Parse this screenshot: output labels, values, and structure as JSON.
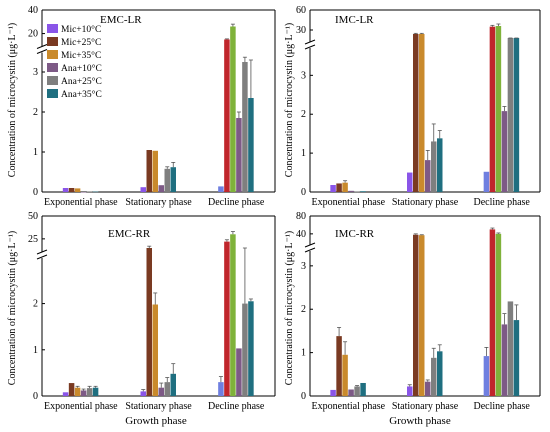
{
  "colors": {
    "mic10": "#8a55e8",
    "mic25": "#7a3a22",
    "mic35": "#c98a2c",
    "ana10": "#7d5a86",
    "ana25": "#7f7f7f",
    "ana35": "#1f6f80",
    "decl_mic10": "#6f7fe0",
    "decl_mic25": "#c0262c",
    "decl_mic35": "#7fb23a"
  },
  "legend": [
    "Mic+10°C",
    "Mic+25°C",
    "Mic+35°C",
    "Ana+10°C",
    "Ana+25°C",
    "Ana+35°C"
  ],
  "ylabel": "Concentration of microcystin (μg·L⁻¹)",
  "xlabel": "Growth phase",
  "chart_data": [
    {
      "type": "bar",
      "title": "EMC-LR",
      "categories": [
        "Exponential phase",
        "Stationary phase",
        "Decline phase"
      ],
      "ylim": [
        0,
        40
      ],
      "y_ticks_lower": [
        "0",
        "1",
        "2",
        "3"
      ],
      "y_ticks_upper": [
        "20",
        "40"
      ],
      "series": [
        {
          "name": "Mic+10°C",
          "values": [
            0.1,
            0.12,
            0.14
          ],
          "err": [
            0,
            0,
            0
          ]
        },
        {
          "name": "Mic+25°C",
          "values": [
            0.1,
            1.05,
            15
          ],
          "err": [
            0,
            0,
            0.5
          ]
        },
        {
          "name": "Mic+35°C",
          "values": [
            0.09,
            1.03,
            26
          ],
          "err": [
            0,
            0,
            2
          ]
        },
        {
          "name": "Ana+10°C",
          "values": [
            0.0,
            0.17,
            1.85
          ],
          "err": [
            0,
            0,
            0.15
          ]
        },
        {
          "name": "Ana+25°C",
          "values": [
            0.01,
            0.58,
            3.25
          ],
          "err": [
            0,
            0.05,
            0.12
          ]
        },
        {
          "name": "Ana+35°C",
          "values": [
            0.01,
            0.62,
            2.35
          ],
          "err": [
            0,
            0.12,
            0.95
          ]
        }
      ]
    },
    {
      "type": "bar",
      "title": "IMC-LR",
      "categories": [
        "Exponential phase",
        "Stationary phase",
        "Decline phase"
      ],
      "ylim": [
        0,
        60
      ],
      "y_ticks_lower": [
        "0",
        "1",
        "2",
        "3"
      ],
      "y_ticks_upper": [
        "30",
        "60"
      ],
      "series": [
        {
          "name": "Mic+10°C",
          "values": [
            0.18,
            0.5,
            0.52
          ],
          "err": [
            0,
            0,
            0
          ]
        },
        {
          "name": "Mic+25°C",
          "values": [
            0.22,
            24,
            35
          ],
          "err": [
            0,
            1,
            2
          ]
        },
        {
          "name": "Mic+35°C",
          "values": [
            0.24,
            24,
            36
          ],
          "err": [
            0.05,
            1,
            3
          ]
        },
        {
          "name": "Ana+10°C",
          "values": [
            0.03,
            0.82,
            2.08
          ],
          "err": [
            0,
            0.25,
            0.12
          ]
        },
        {
          "name": "Ana+25°C",
          "values": [
            0.01,
            1.3,
            5.0
          ],
          "err": [
            0,
            0.45,
            0.4
          ]
        },
        {
          "name": "Ana+35°C",
          "values": [
            0.02,
            1.38,
            3.7
          ],
          "err": [
            0,
            0.2,
            0.1
          ]
        }
      ]
    },
    {
      "type": "bar",
      "title": "EMC-RR",
      "categories": [
        "Exponential phase",
        "Stationary phase",
        "Decline phase"
      ],
      "ylim": [
        0,
        50
      ],
      "y_ticks_lower": [
        "0",
        "1",
        "2"
      ],
      "y_ticks_upper": [
        "25",
        "50"
      ],
      "series": [
        {
          "name": "Mic+10°C",
          "values": [
            0.08,
            0.1,
            0.3
          ],
          "err": [
            0,
            0.04,
            0.12
          ]
        },
        {
          "name": "Mic+25°C",
          "values": [
            0.28,
            15,
            22
          ],
          "err": [
            0,
            2,
            2
          ]
        },
        {
          "name": "Mic+35°C",
          "values": [
            0.18,
            1.98,
            30
          ],
          "err": [
            0.03,
            0.25,
            3
          ]
        },
        {
          "name": "Ana+10°C",
          "values": [
            0.12,
            0.18,
            1.03
          ],
          "err": [
            0.03,
            0.1,
            0
          ]
        },
        {
          "name": "Ana+25°C",
          "values": [
            0.17,
            0.3,
            2.0
          ],
          "err": [
            0.04,
            0.1,
            1.05
          ]
        },
        {
          "name": "Ana+35°C",
          "values": [
            0.18,
            0.48,
            2.05
          ],
          "err": [
            0.03,
            0.22,
            0.05
          ]
        }
      ]
    },
    {
      "type": "bar",
      "title": "IMC-RR",
      "categories": [
        "Exponential phase",
        "Stationary phase",
        "Decline phase"
      ],
      "ylim": [
        0,
        80
      ],
      "y_ticks_lower": [
        "0",
        "1",
        "2",
        "3"
      ],
      "y_ticks_upper": [
        "40",
        "80"
      ],
      "series": [
        {
          "name": "Mic+10°C",
          "values": [
            0.14,
            0.22,
            0.92
          ],
          "err": [
            0,
            0.04,
            0.2
          ]
        },
        {
          "name": "Mic+25°C",
          "values": [
            1.38,
            38,
            50
          ],
          "err": [
            0.2,
            2,
            3
          ]
        },
        {
          "name": "Mic+35°C",
          "values": [
            0.95,
            37,
            40
          ],
          "err": [
            0.3,
            1,
            2
          ]
        },
        {
          "name": "Ana+10°C",
          "values": [
            0.15,
            0.33,
            1.65
          ],
          "err": [
            0,
            0.04,
            0.25
          ]
        },
        {
          "name": "Ana+25°C",
          "values": [
            0.22,
            0.88,
            2.18
          ],
          "err": [
            0.02,
            0.22,
            0
          ]
        },
        {
          "name": "Ana+35°C",
          "values": [
            0.3,
            1.03,
            1.75
          ],
          "err": [
            0,
            0.15,
            0.35
          ]
        }
      ]
    }
  ]
}
